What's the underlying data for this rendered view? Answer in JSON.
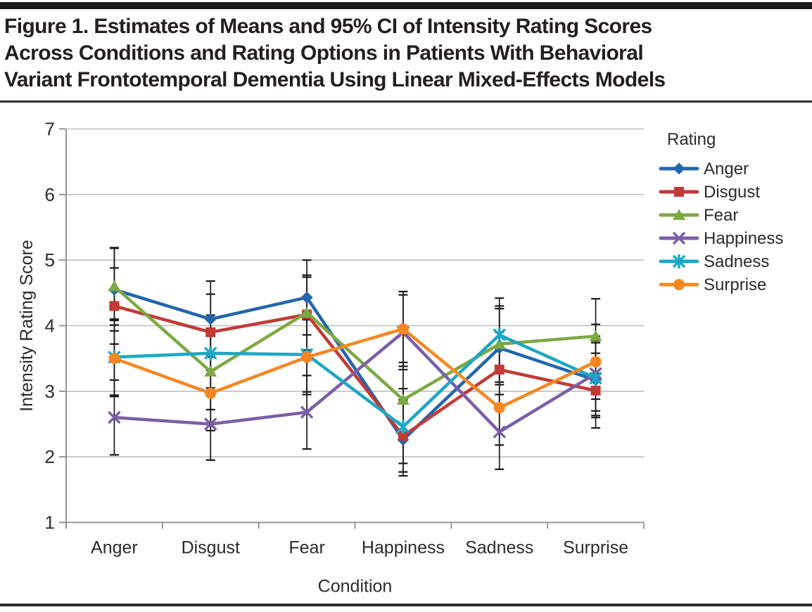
{
  "page": {
    "title_lines": [
      "Figure 1. Estimates of Means and 95% CI of Intensity Rating Scores",
      "Across Conditions and Rating Options in Patients With Behavioral",
      "Variant Frontotemporal Dementia Using Linear Mixed-Effects Models"
    ]
  },
  "chart_data": {
    "type": "line",
    "title": "",
    "xlabel": "Condition",
    "ylabel": "Intensity Rating Score",
    "ylim": [
      1,
      7
    ],
    "yticks": [
      1,
      2,
      3,
      4,
      5,
      6,
      7
    ],
    "grid": true,
    "error_bars": "95% CI",
    "legend_title": "Rating",
    "legend_position": "right",
    "categories": [
      "Anger",
      "Disgust",
      "Fear",
      "Happiness",
      "Sadness",
      "Surprise"
    ],
    "colors": {
      "axis": "#8c8c8c",
      "gridline": "#bdbdbd",
      "error_bar": "#1a1a1a",
      "text": "#2b2b2b"
    },
    "series": [
      {
        "name": "Anger",
        "color": "#2366ad",
        "marker": "diamond",
        "values": [
          4.55,
          4.1,
          4.43,
          2.26,
          3.66,
          3.17
        ],
        "ci_low": [
          3.92,
          3.52,
          3.86,
          1.71,
          3.1,
          2.6
        ],
        "ci_high": [
          5.18,
          4.68,
          5.0,
          2.84,
          4.26,
          3.74
        ]
      },
      {
        "name": "Disgust",
        "color": "#c23a36",
        "marker": "square",
        "values": [
          4.3,
          3.9,
          4.17,
          2.32,
          3.33,
          3.01
        ],
        "ci_low": [
          3.72,
          3.32,
          3.6,
          1.77,
          2.76,
          2.44
        ],
        "ci_high": [
          4.88,
          4.48,
          4.74,
          2.87,
          3.9,
          3.58
        ]
      },
      {
        "name": "Fear",
        "color": "#7ca943",
        "marker": "triangle",
        "values": [
          4.6,
          3.3,
          4.2,
          2.87,
          3.72,
          3.84
        ],
        "ci_low": [
          4.01,
          2.72,
          3.63,
          2.3,
          3.14,
          3.27
        ],
        "ci_high": [
          5.19,
          3.88,
          4.77,
          3.44,
          4.3,
          4.41
        ]
      },
      {
        "name": "Happiness",
        "color": "#7c5ea7",
        "marker": "x",
        "values": [
          2.6,
          2.5,
          2.68,
          3.9,
          2.38,
          3.27
        ],
        "ci_low": [
          2.03,
          1.95,
          2.12,
          3.33,
          1.81,
          2.7
        ],
        "ci_high": [
          3.17,
          3.05,
          3.24,
          4.47,
          2.95,
          3.84
        ]
      },
      {
        "name": "Sadness",
        "color": "#1da7c6",
        "marker": "asterisk",
        "values": [
          3.52,
          3.58,
          3.56,
          2.46,
          3.86,
          3.2
        ],
        "ci_low": [
          2.94,
          3.0,
          2.99,
          1.9,
          3.3,
          2.63
        ],
        "ci_high": [
          4.1,
          4.16,
          4.13,
          3.04,
          4.42,
          3.77
        ]
      },
      {
        "name": "Surprise",
        "color": "#f58723",
        "marker": "circle",
        "values": [
          3.5,
          2.97,
          3.52,
          3.95,
          2.75,
          3.45
        ],
        "ci_low": [
          2.92,
          2.4,
          2.95,
          3.38,
          2.18,
          2.88
        ],
        "ci_high": [
          4.08,
          3.54,
          4.09,
          4.52,
          3.32,
          4.02
        ]
      }
    ]
  }
}
